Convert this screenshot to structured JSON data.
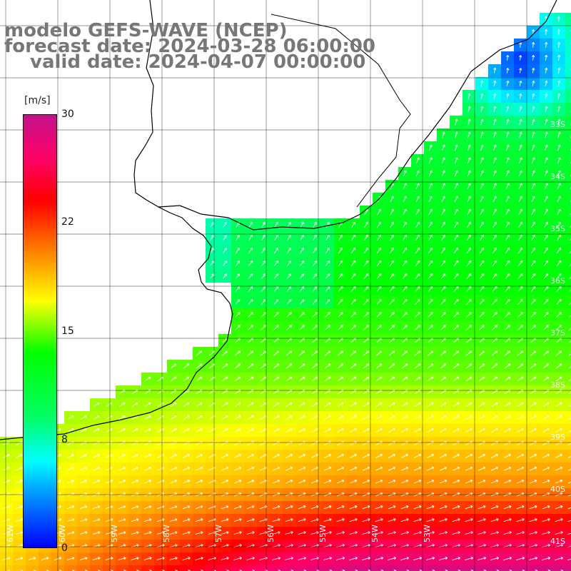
{
  "title": {
    "line1": "modelo GEFS-WAVE (NCEP)",
    "line2": "forecast date: 2024-03-28 06:00:00",
    "line3": "valid date: 2024-04-07 00:00:00"
  },
  "colorbar": {
    "units": "[m/s]",
    "ticks": [
      "30",
      "22",
      "15",
      "8",
      "0"
    ],
    "colors": [
      "#0000ff",
      "#00a0ff",
      "#00ffff",
      "#00ff66",
      "#00ff00",
      "#ffff00",
      "#ff9000",
      "#ff0000",
      "#ff0066",
      "#c21289"
    ],
    "range": [
      0,
      30
    ]
  },
  "axes": {
    "lat_labels": [
      "33S",
      "34S",
      "35S",
      "36S",
      "37S",
      "38S",
      "39S",
      "40S",
      "41S"
    ],
    "lon_labels": [
      "61W",
      "60W",
      "59W",
      "58W",
      "57W",
      "56W",
      "55W",
      "54W",
      "53W"
    ]
  },
  "map": {
    "variable": "wind speed and direction",
    "land_color": "#ffffff",
    "grid_color": "#000000",
    "coast_color": "#000000",
    "arrow_color": "#ffffff",
    "general_direction": "north-east"
  }
}
